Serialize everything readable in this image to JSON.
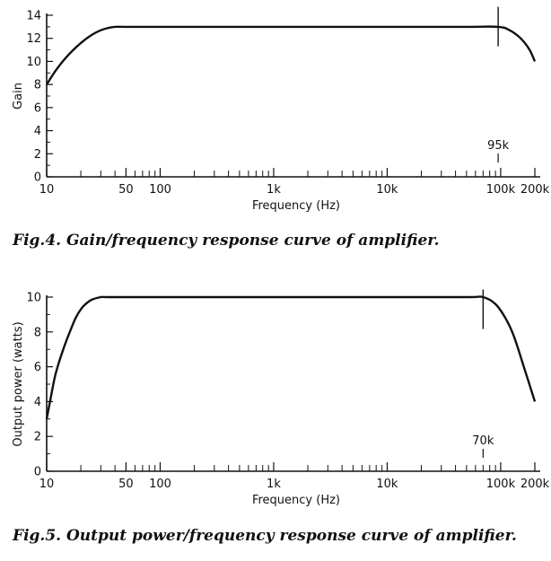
{
  "figures": [
    {
      "caption": "Fig.4. Gain/frequency response curve of amplifier.",
      "chart_data": {
        "type": "line",
        "title": "",
        "xlabel": "Frequency (Hz)",
        "ylabel": "Gain",
        "x_scale": "log",
        "xlim": [
          10,
          200000
        ],
        "ylim": [
          0,
          14
        ],
        "x_ticks": [
          {
            "value": 10,
            "label": "10"
          },
          {
            "value": 50,
            "label": "50"
          },
          {
            "value": 100,
            "label": "100"
          },
          {
            "value": 1000,
            "label": "1k"
          },
          {
            "value": 10000,
            "label": "10k"
          },
          {
            "value": 100000,
            "label": "100k"
          },
          {
            "value": 200000,
            "label": "200k"
          }
        ],
        "y_ticks": [
          0,
          2,
          4,
          6,
          8,
          10,
          12,
          14
        ],
        "series": [
          {
            "x": [
              10,
              12,
              15,
              20,
              25,
              30,
              35,
              40,
              50,
              100,
              1000,
              10000,
              50000,
              95000,
              120000,
              150000,
              180000,
              200000
            ],
            "y": [
              8.0,
              9.2,
              10.4,
              11.6,
              12.3,
              12.7,
              12.9,
              13.0,
              13.0,
              13.0,
              13.0,
              13.0,
              13.0,
              13.0,
              12.7,
              12.0,
              11.0,
              10.0
            ]
          }
        ],
        "annotations": [
          {
            "x": 95000,
            "label": "95k"
          }
        ],
        "grid": false
      }
    },
    {
      "caption": "Fig.5. Output power/frequency response curve of amplifier.",
      "chart_data": {
        "type": "line",
        "title": "",
        "xlabel": "Frequency (Hz)",
        "ylabel": "Output power (watts)",
        "x_scale": "log",
        "xlim": [
          10,
          200000
        ],
        "ylim": [
          0,
          10
        ],
        "x_ticks": [
          {
            "value": 10,
            "label": "10"
          },
          {
            "value": 50,
            "label": "50"
          },
          {
            "value": 100,
            "label": "100"
          },
          {
            "value": 1000,
            "label": "1k"
          },
          {
            "value": 10000,
            "label": "10k"
          },
          {
            "value": 100000,
            "label": "100k"
          },
          {
            "value": 200000,
            "label": "200k"
          }
        ],
        "y_ticks": [
          0,
          2,
          4,
          6,
          8,
          10
        ],
        "series": [
          {
            "x": [
              10,
              11,
              12,
              14,
              16,
              18,
              20,
              22,
              25,
              30,
              35,
              100,
              1000,
              10000,
              50000,
              70000,
              90000,
              110000,
              130000,
              160000,
              200000
            ],
            "y": [
              3.0,
              4.4,
              5.6,
              7.0,
              8.0,
              8.8,
              9.3,
              9.6,
              9.85,
              10.0,
              10.0,
              10.0,
              10.0,
              10.0,
              10.0,
              10.0,
              9.6,
              8.8,
              7.8,
              6.0,
              4.0
            ]
          }
        ],
        "annotations": [
          {
            "x": 70000,
            "label": "70k"
          }
        ],
        "grid": false
      }
    }
  ]
}
